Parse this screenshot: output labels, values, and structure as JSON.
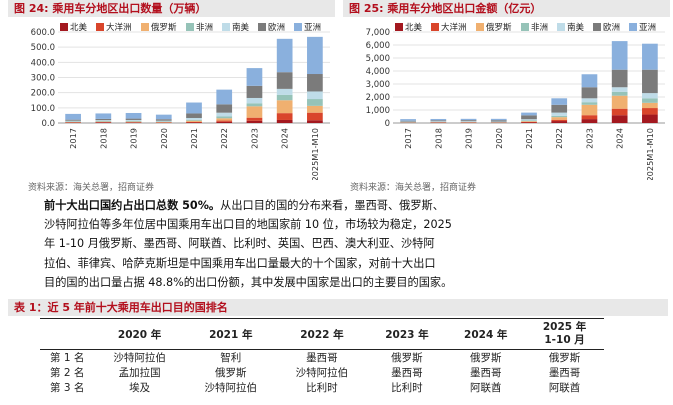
{
  "figures": {
    "left": {
      "title": "图 24: 乘用车分地区出口数量（万辆）",
      "source": "资料来源：海关总署，招商证券"
    },
    "right": {
      "title": "图 25: 乘用车分地区出口金额（亿元）",
      "source": "资料来源：海关总署，招商证券"
    }
  },
  "legend_colors": {
    "北美": "#a3181f",
    "大洋洲": "#d9452b",
    "俄罗斯": "#f0b070",
    "非洲": "#96c3b8",
    "南美": "#bfdce8",
    "欧洲": "#7b7b7b",
    "亚洲": "#8ab0dd"
  },
  "chart_data": [
    {
      "type": "bar",
      "stacked": true,
      "title": "图 24: 乘用车分地区出口数量（万辆）",
      "categories": [
        "2017",
        "2018",
        "2019",
        "2020",
        "2021",
        "2022",
        "2023",
        "2024",
        "2025M1-M10"
      ],
      "ylim": [
        0,
        600
      ],
      "yticks": [
        0,
        100,
        200,
        300,
        400,
        500,
        600
      ],
      "ytick_labels": [
        "0.0",
        "100.0",
        "200.0",
        "300.0",
        "400.0",
        "500.0",
        "600.0"
      ],
      "legend": "top",
      "series": [
        {
          "name": "北美",
          "values": [
            3,
            4,
            3,
            2,
            3,
            8,
            15,
            20,
            18
          ]
        },
        {
          "name": "大洋洲",
          "values": [
            1,
            2,
            2,
            2,
            4,
            8,
            20,
            45,
            50
          ]
        },
        {
          "name": "俄罗斯",
          "values": [
            3,
            3,
            4,
            3,
            8,
            15,
            75,
            85,
            45
          ]
        },
        {
          "name": "非洲",
          "values": [
            3,
            4,
            4,
            3,
            6,
            12,
            20,
            35,
            45
          ]
        },
        {
          "name": "南美",
          "values": [
            5,
            6,
            7,
            5,
            12,
            25,
            35,
            40,
            50
          ]
        },
        {
          "name": "欧洲",
          "values": [
            7,
            8,
            9,
            10,
            30,
            55,
            80,
            110,
            115
          ]
        },
        {
          "name": "亚洲",
          "values": [
            38,
            36,
            37,
            30,
            72,
            97,
            117,
            220,
            245
          ]
        }
      ]
    },
    {
      "type": "bar",
      "stacked": true,
      "title": "图 25: 乘用车分地区出口金额（亿元）",
      "categories": [
        "2017",
        "2018",
        "2019",
        "2020",
        "2021",
        "2022",
        "2023",
        "2024",
        "2025M1-M10"
      ],
      "ylim": [
        0,
        7000
      ],
      "yticks": [
        0,
        1000,
        2000,
        3000,
        4000,
        5000,
        6000,
        7000
      ],
      "ytick_labels": [
        "0",
        "1,000",
        "2,000",
        "3,000",
        "4,000",
        "5,000",
        "6,000",
        "7,000"
      ],
      "legend": "top",
      "series": [
        {
          "name": "北美",
          "values": [
            20,
            25,
            20,
            15,
            40,
            150,
            300,
            600,
            650
          ]
        },
        {
          "name": "大洋洲",
          "values": [
            10,
            15,
            20,
            20,
            40,
            100,
            300,
            500,
            500
          ]
        },
        {
          "name": "俄罗斯",
          "values": [
            20,
            25,
            25,
            20,
            60,
            200,
            800,
            1000,
            400
          ]
        },
        {
          "name": "非洲",
          "values": [
            25,
            25,
            25,
            20,
            50,
            100,
            200,
            300,
            350
          ]
        },
        {
          "name": "南美",
          "values": [
            40,
            45,
            50,
            40,
            100,
            250,
            300,
            350,
            400
          ]
        },
        {
          "name": "欧洲",
          "values": [
            60,
            70,
            80,
            100,
            300,
            600,
            850,
            1350,
            1800
          ]
        },
        {
          "name": "亚洲",
          "values": [
            125,
            105,
            100,
            105,
            210,
            500,
            1000,
            2200,
            2000
          ]
        }
      ]
    }
  ],
  "paragraph": {
    "lead_bold": "前十大出口国约占出口总数 50%。",
    "line1_rest": "从出口目的国的分布来看，墨西哥、俄罗斯、",
    "line2": "沙特阿拉伯等多年位居中国乘用车出口目的地国家前 10 位，市场较为稳定，2025",
    "line3": "年 1-10 月俄罗斯、墨西哥、阿联酋、比利时、英国、巴西、澳大利亚、沙特阿",
    "line4": "拉伯、菲律宾、哈萨克斯坦是中国乘用车出口量最大的十个国家，对前十大出口",
    "line5": "目的国的出口量占据 48.8%的出口份额，其中发展中国家是出口的主要目的国家。"
  },
  "table": {
    "title": "表 1：近 5 年前十大乘用车出口目的国排名",
    "headers": [
      "",
      "2020 年",
      "2021 年",
      "2022 年",
      "2023 年",
      "2024 年",
      "2025 年\n1-10 月"
    ],
    "rows": [
      [
        "第 1 名",
        "沙特阿拉伯",
        "智利",
        "墨西哥",
        "俄罗斯",
        "俄罗斯",
        "俄罗斯"
      ],
      [
        "第 2 名",
        "孟加拉国",
        "俄罗斯",
        "沙特阿拉伯",
        "墨西哥",
        "墨西哥",
        "墨西哥"
      ],
      [
        "第 3 名",
        "埃及",
        "沙特阿拉伯",
        "比利时",
        "比利时",
        "阿联酋",
        "阿联酋"
      ]
    ]
  }
}
